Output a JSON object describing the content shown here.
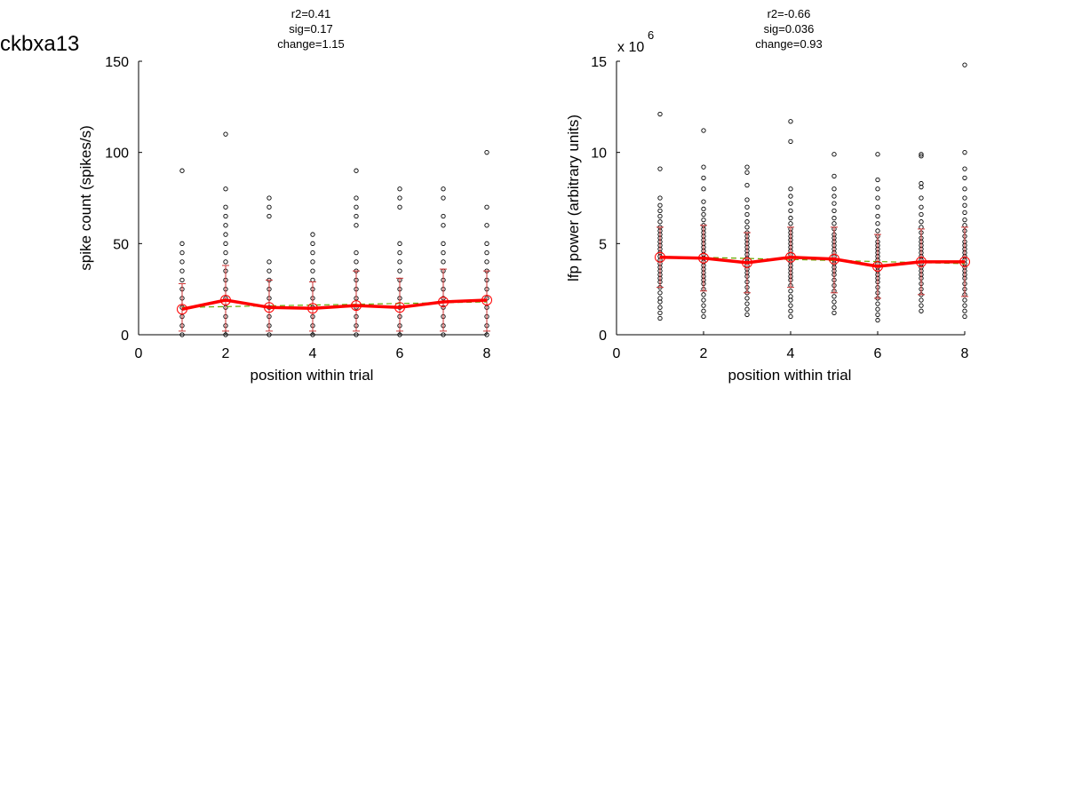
{
  "figure": {
    "suptitle": "ckbxa13"
  },
  "chart_data": [
    {
      "type": "scatter",
      "title_lines": [
        "r2=0.41",
        "sig=0.17",
        "change=1.15"
      ],
      "xlabel": "position within trial",
      "ylabel": "spike count (spikes/s)",
      "xlim": [
        0,
        8
      ],
      "ylim": [
        0,
        150
      ],
      "xticks": [
        0,
        2,
        4,
        6,
        8
      ],
      "xtick_labels": [
        "0",
        "2",
        "4",
        "6",
        "8"
      ],
      "yticks": [
        0,
        50,
        100,
        150
      ],
      "ytick_labels": [
        "0",
        "50",
        "100",
        "150"
      ],
      "exponent_label": "",
      "grid": false,
      "colors": {
        "points": "#000000",
        "mean": "#ff0000",
        "errorbar": "#cc3333",
        "fit": "#66aa00"
      },
      "points": [
        {
          "x": 1,
          "y": [
            0,
            5,
            10,
            15,
            20,
            25,
            30,
            35,
            40,
            45,
            50,
            90
          ]
        },
        {
          "x": 2,
          "y": [
            0,
            5,
            10,
            15,
            20,
            25,
            30,
            35,
            40,
            45,
            50,
            55,
            60,
            65,
            70,
            80,
            110
          ]
        },
        {
          "x": 3,
          "y": [
            0,
            5,
            10,
            15,
            20,
            25,
            30,
            35,
            40,
            65,
            70,
            75
          ]
        },
        {
          "x": 4,
          "y": [
            0,
            5,
            10,
            15,
            20,
            25,
            30,
            35,
            40,
            45,
            50,
            55
          ]
        },
        {
          "x": 5,
          "y": [
            0,
            5,
            10,
            15,
            20,
            25,
            30,
            35,
            40,
            45,
            60,
            65,
            70,
            75,
            90
          ]
        },
        {
          "x": 6,
          "y": [
            0,
            5,
            10,
            15,
            20,
            25,
            30,
            35,
            40,
            45,
            50,
            70,
            75,
            80
          ]
        },
        {
          "x": 7,
          "y": [
            0,
            5,
            10,
            15,
            20,
            25,
            30,
            35,
            40,
            45,
            50,
            60,
            65,
            75,
            80
          ]
        },
        {
          "x": 8,
          "y": [
            0,
            5,
            10,
            15,
            20,
            25,
            30,
            35,
            40,
            45,
            50,
            60,
            70,
            100
          ]
        }
      ],
      "mean": {
        "x": [
          1,
          2,
          3,
          4,
          5,
          6,
          7,
          8
        ],
        "y": [
          14,
          19,
          15,
          14.5,
          16,
          15,
          18,
          19
        ]
      },
      "errorbar": {
        "lower": [
          2,
          2,
          2,
          2,
          2,
          2,
          2,
          2
        ],
        "upper": [
          28,
          38,
          30,
          29,
          35,
          31,
          36,
          35
        ]
      },
      "fit": {
        "x": [
          1,
          8
        ],
        "y": [
          15,
          18
        ]
      }
    },
    {
      "type": "scatter",
      "title_lines": [
        "r2=-0.66",
        "sig=0.036",
        "change=0.93"
      ],
      "xlabel": "position within trial",
      "ylabel": "lfp power (arbitrary units)",
      "xlim": [
        0,
        8
      ],
      "ylim": [
        0,
        15
      ],
      "xticks": [
        0,
        2,
        4,
        6,
        8
      ],
      "xtick_labels": [
        "0",
        "2",
        "4",
        "6",
        "8"
      ],
      "yticks": [
        0,
        5,
        10,
        15
      ],
      "ytick_labels": [
        "0",
        "5",
        "10",
        "15"
      ],
      "exponent_label": "x 10",
      "exponent_power": "6",
      "grid": false,
      "colors": {
        "points": "#000000",
        "mean": "#ff0000",
        "errorbar": "#cc3333",
        "fit": "#66aa00"
      },
      "points": [
        {
          "x": 1,
          "y": [
            0.9,
            1.2,
            1.5,
            1.8,
            2.0,
            2.3,
            2.6,
            2.9,
            3.1,
            3.3,
            3.5,
            3.7,
            3.9,
            4.1,
            4.3,
            4.5,
            4.7,
            4.9,
            5.1,
            5.3,
            5.5,
            5.7,
            5.9,
            6.2,
            6.5,
            6.8,
            7.1,
            7.5,
            9.1,
            12.1
          ]
        },
        {
          "x": 2,
          "y": [
            1.0,
            1.3,
            1.6,
            1.9,
            2.2,
            2.5,
            2.8,
            3.0,
            3.2,
            3.4,
            3.6,
            3.8,
            4.0,
            4.2,
            4.4,
            4.6,
            4.8,
            5.0,
            5.2,
            5.4,
            5.6,
            5.8,
            6.0,
            6.3,
            6.6,
            6.9,
            7.3,
            8.0,
            8.6,
            9.2,
            11.2
          ]
        },
        {
          "x": 3,
          "y": [
            1.1,
            1.4,
            1.7,
            2.0,
            2.3,
            2.6,
            2.9,
            3.2,
            3.4,
            3.6,
            3.8,
            4.0,
            4.2,
            4.4,
            4.6,
            4.8,
            5.0,
            5.2,
            5.4,
            5.6,
            5.9,
            6.2,
            6.6,
            7.0,
            7.4,
            8.2,
            8.9,
            9.2
          ]
        },
        {
          "x": 4,
          "y": [
            1.0,
            1.3,
            1.6,
            1.9,
            2.1,
            2.4,
            2.7,
            3.0,
            3.2,
            3.4,
            3.6,
            3.8,
            4.0,
            4.2,
            4.4,
            4.6,
            4.8,
            5.0,
            5.2,
            5.4,
            5.6,
            5.8,
            6.1,
            6.4,
            6.8,
            7.2,
            7.6,
            8.0,
            10.6,
            11.7
          ]
        },
        {
          "x": 5,
          "y": [
            1.2,
            1.5,
            1.8,
            2.1,
            2.4,
            2.7,
            3.0,
            3.3,
            3.5,
            3.7,
            3.9,
            4.1,
            4.3,
            4.5,
            4.7,
            4.9,
            5.1,
            5.3,
            5.5,
            5.8,
            6.1,
            6.4,
            6.8,
            7.2,
            7.6,
            8.0,
            8.7,
            9.9
          ]
        },
        {
          "x": 6,
          "y": [
            0.8,
            1.1,
            1.4,
            1.7,
            2.0,
            2.3,
            2.6,
            2.9,
            3.1,
            3.3,
            3.5,
            3.7,
            3.9,
            4.1,
            4.3,
            4.5,
            4.7,
            4.9,
            5.1,
            5.4,
            5.7,
            6.1,
            6.5,
            7.0,
            7.5,
            8.0,
            8.5,
            9.9
          ]
        },
        {
          "x": 7,
          "y": [
            1.3,
            1.6,
            1.9,
            2.2,
            2.5,
            2.8,
            3.1,
            3.3,
            3.5,
            3.7,
            3.9,
            4.1,
            4.3,
            4.5,
            4.7,
            4.9,
            5.1,
            5.3,
            5.6,
            5.9,
            6.2,
            6.6,
            7.0,
            7.5,
            8.1,
            8.3,
            9.8,
            9.9
          ]
        },
        {
          "x": 8,
          "y": [
            1.0,
            1.3,
            1.6,
            1.9,
            2.2,
            2.5,
            2.8,
            3.1,
            3.3,
            3.5,
            3.7,
            3.9,
            4.1,
            4.3,
            4.5,
            4.7,
            4.9,
            5.1,
            5.4,
            5.7,
            6.0,
            6.3,
            6.7,
            7.1,
            7.5,
            8.0,
            8.6,
            9.1,
            10.0,
            14.8
          ]
        }
      ],
      "mean": {
        "x": [
          1,
          2,
          3,
          4,
          5,
          6,
          7,
          8
        ],
        "y": [
          4.25,
          4.2,
          3.95,
          4.25,
          4.15,
          3.75,
          4.0,
          4.0
        ]
      },
      "errorbar": {
        "lower": [
          2.6,
          2.4,
          2.3,
          2.6,
          2.3,
          2.0,
          2.2,
          2.1
        ],
        "upper": [
          5.9,
          6.0,
          5.6,
          5.9,
          5.9,
          5.5,
          5.8,
          5.9
        ]
      },
      "fit": {
        "x": [
          1,
          8
        ],
        "y": [
          4.3,
          3.9
        ]
      }
    }
  ]
}
